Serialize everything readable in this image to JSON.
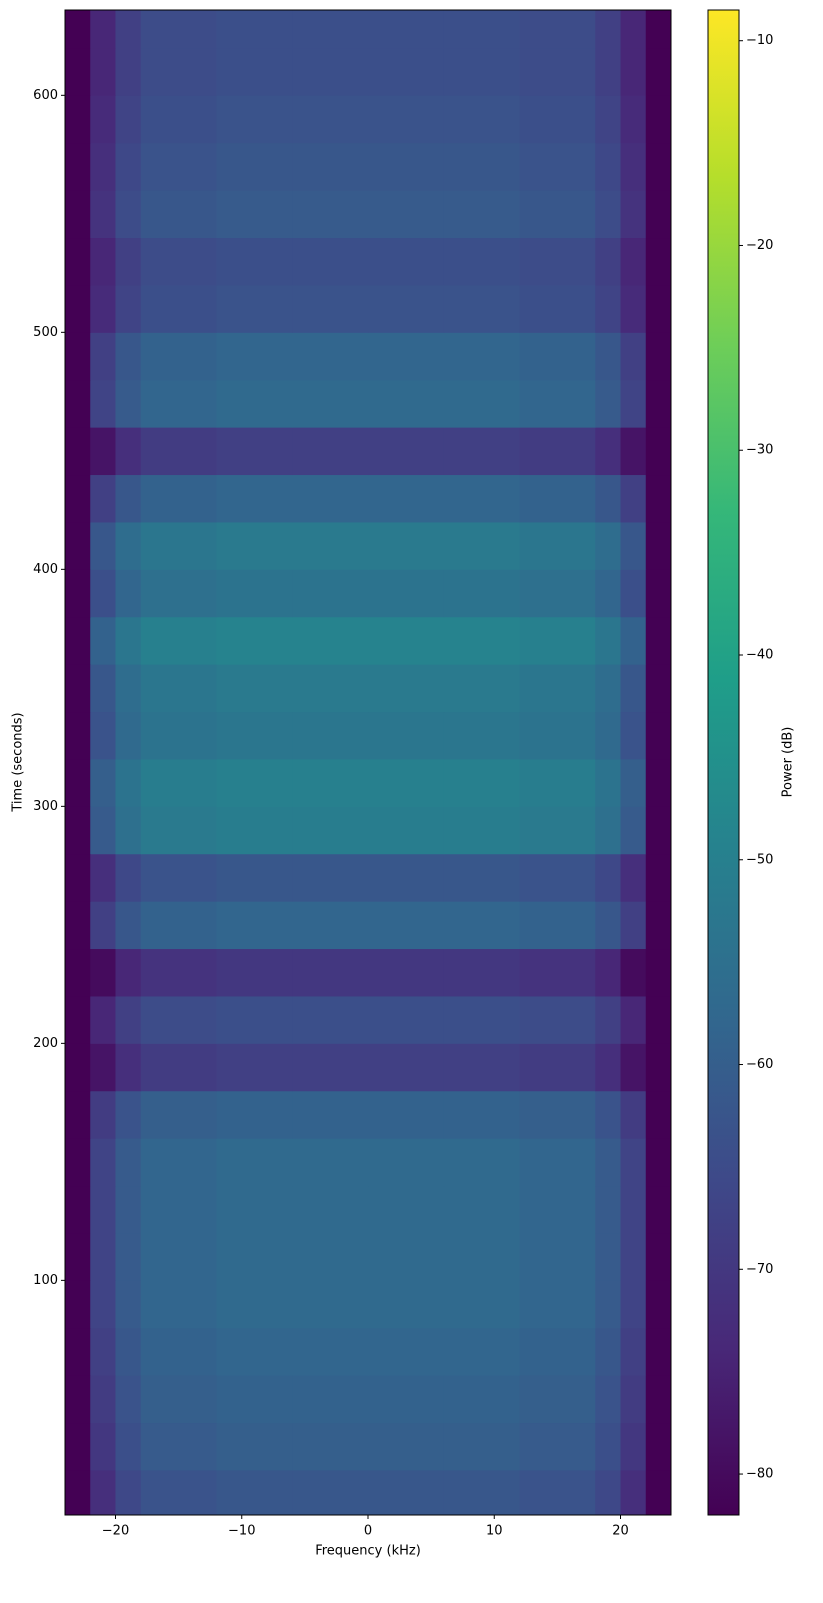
{
  "chart_data": {
    "type": "heatmap",
    "xlabel": "Frequency (kHz)",
    "ylabel": "Time (seconds)",
    "colorbar_label": "Power (dB)",
    "colormap": "viridis",
    "xlim": [
      -24,
      24
    ],
    "xticks": [
      {
        "value": -20,
        "label": "−20"
      },
      {
        "value": -10,
        "label": "−10"
      },
      0,
      10,
      20
    ],
    "ylim": [
      1,
      636
    ],
    "yticks": [
      100,
      200,
      300,
      400,
      500,
      600
    ],
    "clim": [
      -82,
      -8.5
    ],
    "cticks": [
      {
        "value": -80,
        "label": "−80"
      },
      {
        "value": -70,
        "label": "−70"
      },
      {
        "value": -60,
        "label": "−60"
      },
      {
        "value": -50,
        "label": "−50"
      },
      {
        "value": -40,
        "label": "−40"
      },
      {
        "value": -30,
        "label": "−30"
      },
      {
        "value": -20,
        "label": "−20"
      },
      {
        "value": -10,
        "label": "−10"
      }
    ],
    "xbins": [
      -24,
      -22,
      -20,
      -18,
      -12,
      -6,
      0,
      6,
      12,
      18,
      20,
      22,
      24
    ],
    "ybins": [
      0,
      20,
      40,
      60,
      80,
      100,
      120,
      140,
      160,
      180,
      200,
      220,
      240,
      260,
      280,
      300,
      320,
      340,
      360,
      380,
      400,
      420,
      440,
      460,
      480,
      500,
      520,
      540,
      560,
      580,
      600,
      620,
      640
    ],
    "z": [
      [
        -82,
        -72,
        -66,
        -63,
        -62,
        -62,
        -62,
        -62,
        -63,
        -66,
        -72,
        -82
      ],
      [
        -82,
        -70,
        -64,
        -61,
        -60,
        -60,
        -60,
        -60,
        -61,
        -64,
        -70,
        -82
      ],
      [
        -82,
        -69,
        -63,
        -60,
        -59,
        -59,
        -59,
        -59,
        -60,
        -63,
        -69,
        -82
      ],
      [
        -82,
        -68,
        -62,
        -59,
        -58,
        -58,
        -58,
        -58,
        -59,
        -62,
        -68,
        -82
      ],
      [
        -82,
        -67,
        -61,
        -58,
        -57,
        -57,
        -57,
        -57,
        -58,
        -61,
        -67,
        -82
      ],
      [
        -82,
        -67,
        -61,
        -58,
        -57,
        -57,
        -57,
        -57,
        -58,
        -61,
        -67,
        -82
      ],
      [
        -82,
        -67,
        -61,
        -58,
        -57,
        -57,
        -57,
        -57,
        -58,
        -61,
        -67,
        -82
      ],
      [
        -82,
        -67,
        -61,
        -58,
        -57,
        -57,
        -57,
        -57,
        -58,
        -61,
        -67,
        -82
      ],
      [
        -82,
        -69,
        -63,
        -60,
        -59,
        -59,
        -59,
        -59,
        -60,
        -63,
        -69,
        -82
      ],
      [
        -82,
        -78,
        -72,
        -69,
        -68,
        -68,
        -68,
        -68,
        -69,
        -72,
        -78,
        -82
      ],
      [
        -82,
        -74,
        -68,
        -65,
        -64,
        -64,
        -64,
        -64,
        -65,
        -68,
        -74,
        -82
      ],
      [
        -82,
        -80,
        -74,
        -71,
        -70,
        -70,
        -70,
        -70,
        -71,
        -74,
        -80,
        -82
      ],
      [
        -82,
        -68,
        -62,
        -59,
        -58,
        -58,
        -58,
        -58,
        -59,
        -62,
        -68,
        -82
      ],
      [
        -82,
        -72,
        -66,
        -63,
        -62,
        -62,
        -62,
        -62,
        -63,
        -66,
        -72,
        -82
      ],
      [
        -82,
        -61,
        -55,
        -52,
        -51,
        -51,
        -51,
        -51,
        -52,
        -55,
        -61,
        -82
      ],
      [
        -82,
        -60,
        -54,
        -51,
        -50,
        -50,
        -50,
        -50,
        -51,
        -54,
        -60,
        -82
      ],
      [
        -82,
        -63,
        -57,
        -54,
        -53,
        -53,
        -53,
        -53,
        -54,
        -57,
        -63,
        -82
      ],
      [
        -82,
        -62,
        -56,
        -53,
        -52,
        -52,
        -52,
        -52,
        -53,
        -56,
        -62,
        -82
      ],
      [
        -82,
        -59,
        -53,
        -50,
        -49,
        -49,
        -49,
        -49,
        -50,
        -53,
        -59,
        -82
      ],
      [
        -82,
        -64,
        -58,
        -55,
        -54,
        -54,
        -54,
        -54,
        -55,
        -58,
        -64,
        -82
      ],
      [
        -82,
        -62,
        -56,
        -53,
        -52,
        -52,
        -52,
        -52,
        -53,
        -56,
        -62,
        -82
      ],
      [
        -82,
        -68,
        -62,
        -59,
        -58,
        -58,
        -58,
        -58,
        -59,
        -62,
        -68,
        -82
      ],
      [
        -82,
        -78,
        -72,
        -69,
        -68,
        -68,
        -68,
        -68,
        -69,
        -72,
        -78,
        -82
      ],
      [
        -82,
        -67,
        -61,
        -58,
        -57,
        -57,
        -57,
        -57,
        -58,
        -61,
        -67,
        -82
      ],
      [
        -82,
        -68,
        -62,
        -59,
        -58,
        -58,
        -58,
        -58,
        -59,
        -62,
        -68,
        -82
      ],
      [
        -82,
        -73,
        -67,
        -64,
        -63,
        -63,
        -63,
        -63,
        -64,
        -67,
        -73,
        -82
      ],
      [
        -82,
        -74,
        -68,
        -65,
        -64,
        -64,
        -64,
        -64,
        -65,
        -68,
        -74,
        -82
      ],
      [
        -82,
        -71,
        -65,
        -62,
        -61,
        -61,
        -61,
        -61,
        -62,
        -65,
        -71,
        -82
      ],
      [
        -82,
        -72,
        -66,
        -63,
        -62,
        -62,
        -62,
        -62,
        -63,
        -66,
        -72,
        -82
      ],
      [
        -82,
        -73,
        -67,
        -64,
        -63,
        -63,
        -63,
        -63,
        -64,
        -67,
        -73,
        -82
      ],
      [
        -82,
        -74,
        -68,
        -65,
        -64,
        -64,
        -64,
        -64,
        -65,
        -68,
        -74,
        -82
      ],
      [
        -82,
        -74,
        -68,
        -65,
        -64,
        -64,
        -64,
        -64,
        -65,
        -68,
        -74,
        -82
      ]
    ]
  }
}
